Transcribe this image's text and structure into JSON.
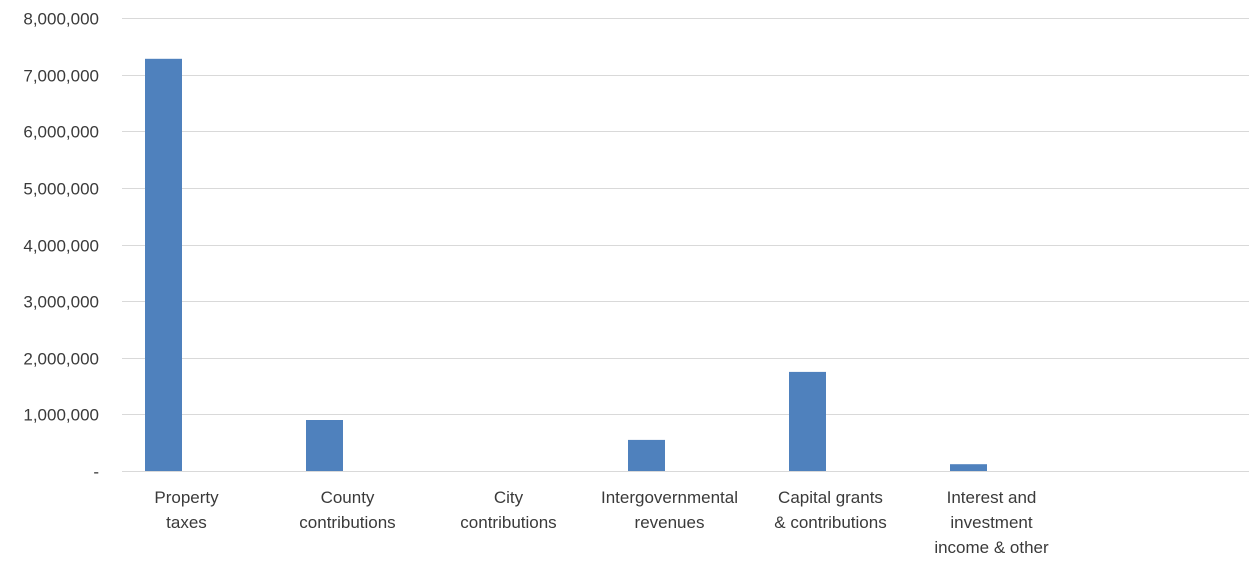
{
  "chart_data": {
    "type": "bar",
    "title": "",
    "xlabel": "",
    "ylabel": "",
    "categories": [
      [
        "Property",
        "taxes"
      ],
      [
        "County",
        "contributions"
      ],
      [
        "City",
        "contributions"
      ],
      [
        "Intergovernmental",
        "revenues"
      ],
      [
        "Capital grants",
        "& contributions"
      ],
      [
        "Interest and",
        "investment",
        "income & other"
      ],
      [
        ""
      ]
    ],
    "series": [
      {
        "values": [
          7280000,
          900000,
          0,
          550000,
          1750000,
          120000,
          0
        ]
      }
    ],
    "ylim": [
      0,
      8000000
    ],
    "yticks": [
      0,
      1000000,
      2000000,
      3000000,
      4000000,
      5000000,
      6000000,
      7000000,
      8000000
    ],
    "ytick_labels": [
      "-",
      "1,000,000",
      "2,000,000",
      "3,000,000",
      "4,000,000",
      "5,000,000",
      "6,000,000",
      "7,000,000",
      "8,000,000"
    ],
    "grid": true,
    "legend": "none",
    "colors": {
      "bar": "#4f81bd",
      "grid": "#d9d9d9",
      "text": "#3a3a3a"
    }
  }
}
